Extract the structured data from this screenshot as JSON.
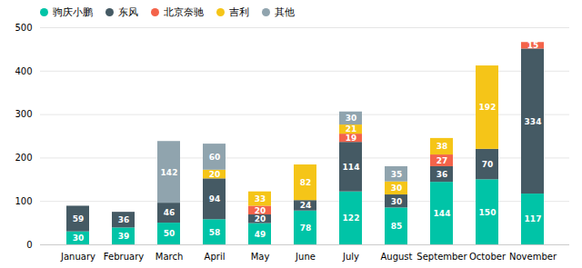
{
  "chart_data": {
    "type": "bar",
    "stacked": true,
    "data_labels": true,
    "grid": true,
    "legend": "upper left",
    "categories": [
      "January",
      "February",
      "March",
      "April",
      "May",
      "June",
      "July",
      "August",
      "September",
      "October",
      "November"
    ],
    "series": [
      {
        "name": "驹庆小鹏",
        "color": "#00C4A7",
        "values": [
          30,
          39,
          50,
          58,
          49,
          78,
          122,
          85,
          144,
          150,
          117
        ]
      },
      {
        "name": "东风",
        "color": "#455A64",
        "values": [
          59,
          36,
          46,
          94,
          20,
          24,
          114,
          30,
          36,
          70,
          334
        ]
      },
      {
        "name": "北京奈驰",
        "color": "#F4634A",
        "values": [
          0,
          0,
          0,
          0,
          20,
          0,
          19,
          0,
          27,
          0,
          15
        ]
      },
      {
        "name": "吉利",
        "color": "#F5C518",
        "values": [
          0,
          0,
          0,
          20,
          33,
          82,
          21,
          30,
          38,
          192,
          0
        ]
      },
      {
        "name": "其他",
        "color": "#90A4AE",
        "values": [
          0,
          0,
          142,
          60,
          0,
          0,
          30,
          35,
          0,
          0,
          0
        ]
      }
    ],
    "ylim": [
      0,
      500
    ],
    "yticks": [
      0,
      100,
      200,
      300,
      400,
      500
    ]
  }
}
